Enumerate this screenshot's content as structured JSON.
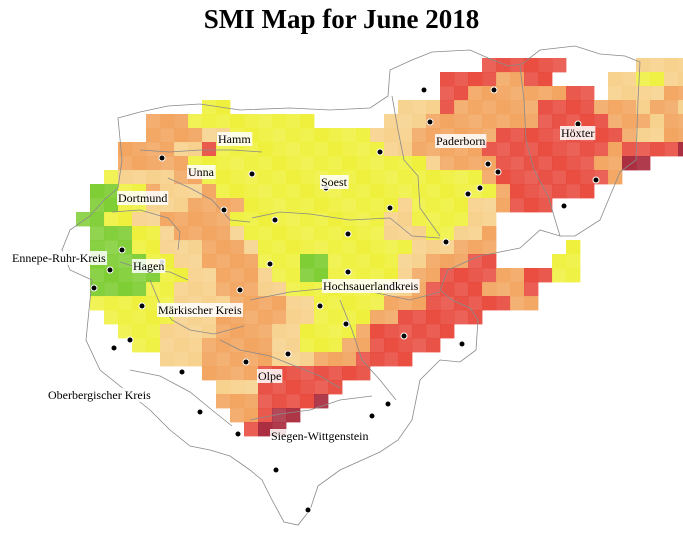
{
  "map": {
    "title": "SMI Map for June 2018",
    "colors": {
      "green": "#7ccc30",
      "yellow": "#eef038",
      "light_orange": "#f7d08a",
      "orange": "#f2a35c",
      "red": "#e8483b",
      "dark_red": "#a8283a",
      "border": "#8a8a8a",
      "point": "#000000"
    },
    "labels": {
      "hamm": "Hamm",
      "unna": "Unna",
      "soest": "Soest",
      "paderborn": "Paderborn",
      "hoexter": "Höxter",
      "dortmund": "Dortmund",
      "ennepe_ruhr_kreis": "Ennepe-Ruhr-Kreis",
      "hagen": "Hagen",
      "hochsauerlandkreis": "Hochsauerlandkreis",
      "maerkischer_kreis": "Märkischer Kreis",
      "olpe": "Olpe",
      "oberbergischer_kreis": "Oberbergischer Kreis",
      "siegen_wittgenstein": "Siegen-Wittgenstein"
    }
  }
}
